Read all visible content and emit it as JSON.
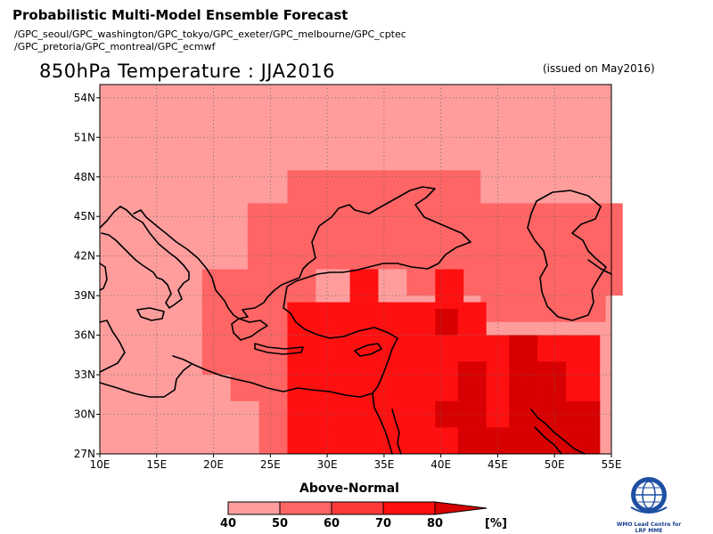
{
  "header": {
    "title": "Probabilistic Multi-Model Ensemble Forecast",
    "models_line1": "/GPC_seoul/GPC_washington/GPC_tokyo/GPC_exeter/GPC_melbourne/GPC_cptec",
    "models_line2": "/GPC_pretoria/GPC_montreal/GPC_ecmwf"
  },
  "map": {
    "title": "850hPa Temperature : JJA2016",
    "issued": "(issued on May2016)",
    "lon_range": [
      10,
      55
    ],
    "lat_range": [
      27,
      55
    ],
    "lon_ticks": [
      10,
      15,
      20,
      25,
      30,
      35,
      40,
      45,
      50,
      55
    ],
    "lon_tick_labels": [
      "10E",
      "15E",
      "20E",
      "25E",
      "30E",
      "35E",
      "40E",
      "45E",
      "50E",
      "55E"
    ],
    "lat_ticks": [
      27,
      30,
      33,
      36,
      39,
      42,
      45,
      48,
      51,
      54
    ],
    "lat_tick_labels": [
      "27N",
      "30N",
      "33N",
      "36N",
      "39N",
      "42N",
      "45N",
      "48N",
      "51N",
      "54N"
    ],
    "grid": "dotted",
    "background_color": "#ff9d9d",
    "category": "Above-Normal",
    "units": "[%]",
    "regions": [
      {
        "label": "50-60",
        "color": "#ff6565",
        "cells": [
          [
            26.5,
            48.5,
            43.5,
            46.0
          ],
          [
            23.0,
            46.0,
            56.0,
            41.0
          ],
          [
            19.0,
            41.0,
            29.0,
            36.0
          ],
          [
            19.0,
            36.0,
            26.5,
            33.0
          ],
          [
            21.5,
            33.0,
            26.5,
            31.0
          ],
          [
            24.0,
            31.0,
            29.0,
            27.0
          ],
          [
            37.0,
            41.0,
            56.0,
            39.0
          ],
          [
            43.5,
            39.0,
            54.5,
            37.0
          ]
        ]
      },
      {
        "label": "70-80",
        "color": "#ff1010",
        "cells": [
          [
            26.5,
            38.5,
            44.0,
            36.0
          ],
          [
            26.5,
            36.0,
            54.0,
            27.0
          ],
          [
            32.0,
            41.0,
            34.5,
            38.5
          ],
          [
            39.5,
            41.0,
            42.0,
            38.5
          ]
        ]
      },
      {
        "label": "80+",
        "color": "#d80000",
        "cells": [
          [
            39.5,
            38.0,
            41.5,
            36.0
          ],
          [
            41.5,
            34.0,
            44.0,
            31.0
          ],
          [
            39.5,
            31.0,
            44.0,
            29.0
          ],
          [
            41.5,
            29.0,
            54.0,
            27.0
          ],
          [
            46.0,
            36.0,
            48.5,
            29.0
          ],
          [
            48.5,
            34.0,
            51.0,
            29.0
          ],
          [
            51.0,
            31.0,
            54.0,
            29.0
          ]
        ]
      }
    ]
  },
  "legend": {
    "title": "Above-Normal",
    "units": "[%]",
    "bins": [
      {
        "label": "40",
        "color": "#ff9d9d"
      },
      {
        "label": "50",
        "color": "#ff6565"
      },
      {
        "label": "60",
        "color": "#ff3a3a"
      },
      {
        "label": "70",
        "color": "#ff1010"
      },
      {
        "label": "80",
        "color": "#d80000"
      }
    ]
  },
  "logo": {
    "icon": "wmo-globe-icon",
    "caption1": "WMO Lead Centre for",
    "caption2": "LRF MME"
  }
}
